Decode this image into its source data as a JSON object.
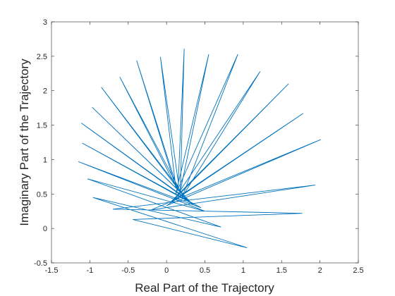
{
  "chart_data": {
    "type": "line",
    "xlabel": "Real Part of the Trajectory",
    "ylabel": "Imaginary Part of the Trajectory",
    "x": [
      0.15,
      0.23,
      0.18,
      0.55,
      0.12,
      0.93,
      0.2,
      1.22,
      0.1,
      1.59,
      0.05,
      1.78,
      0.0,
      2.01,
      -0.2,
      1.94,
      -0.7,
      1.77,
      -0.44,
      1.05,
      -0.96,
      0.71,
      -1.03,
      0.5,
      -1.15,
      0.45,
      -1.1,
      0.35,
      -1.11,
      0.3,
      -0.97,
      0.25,
      -0.85,
      0.2,
      -0.61,
      0.15,
      -0.39,
      0.12,
      -0.08,
      0.15
    ],
    "values": [
      0.6,
      2.61,
      0.55,
      2.53,
      0.5,
      2.53,
      0.45,
      2.28,
      0.42,
      2.1,
      0.38,
      1.67,
      0.33,
      1.29,
      0.27,
      0.63,
      0.28,
      0.22,
      0.13,
      -0.28,
      0.45,
      0.02,
      0.72,
      0.25,
      0.97,
      0.3,
      1.24,
      0.35,
      1.53,
      0.4,
      1.76,
      0.45,
      2.05,
      0.5,
      2.2,
      0.55,
      2.44,
      0.6,
      2.49,
      0.7
    ],
    "color": "#0072bd",
    "xlim": [
      -1.5,
      2.5
    ],
    "xticks": [
      -1.5,
      -1,
      -0.5,
      0,
      0.5,
      1,
      1.5,
      2,
      2.5
    ],
    "ylim": [
      -0.5,
      3
    ],
    "yticks": [
      -0.5,
      0,
      0.5,
      1,
      1.5,
      2,
      2.5,
      3
    ]
  }
}
